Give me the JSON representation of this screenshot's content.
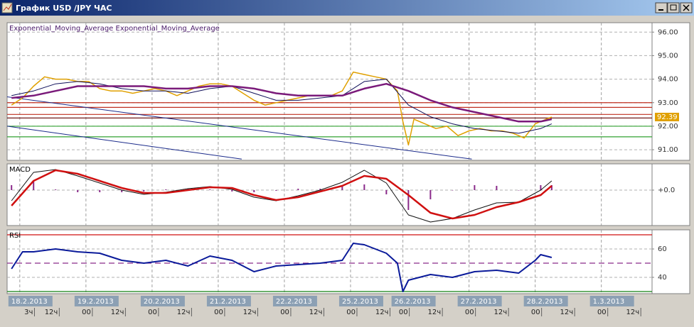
{
  "window": {
    "title": "График USD /JPY ЧАС"
  },
  "chart_data": [
    {
      "type": "line",
      "title": "Exponential_Moving_Average Exponential_Moving_Average",
      "xlim": [
        -4.6,
        229.4
      ],
      "ylim": [
        90.55,
        96.4
      ],
      "yticks": [
        {
          "value": 91,
          "label": "91.00"
        },
        {
          "value": 92,
          "label": "92.00"
        },
        {
          "value": 93,
          "label": "93.00"
        },
        {
          "value": 94,
          "label": "94.00"
        },
        {
          "value": 95,
          "label": "95.00"
        },
        {
          "value": 96,
          "label": "96.00"
        }
      ],
      "grid": true,
      "last_value": 92.39,
      "levels": [
        {
          "value": 93.0,
          "color": "#c03020"
        },
        {
          "value": 92.8,
          "color": "#c03020"
        },
        {
          "value": 92.5,
          "color": "#c03020"
        },
        {
          "value": 92.35,
          "color": "#600000"
        },
        {
          "value": 92.0,
          "color": "#30a030"
        },
        {
          "value": 91.55,
          "color": "#30a030"
        }
      ],
      "series": [
        {
          "type": "line",
          "color": "#1a2a8a",
          "width": 1,
          "x": [
            -4.6,
            164
          ],
          "values": [
            93.25,
            90.6
          ]
        },
        {
          "type": "line",
          "color": "#1a2a8a",
          "width": 1,
          "x": [
            -4.6,
            80.5
          ],
          "values": [
            92.0,
            90.6
          ]
        },
        {
          "type": "line",
          "color": "#e0a000",
          "width": 1.5,
          "x": [
            -3,
            1,
            5,
            9,
            13,
            17,
            21,
            25,
            29,
            33,
            37,
            41,
            45,
            49,
            53,
            57,
            61,
            65,
            69,
            73,
            77,
            81,
            85,
            89,
            93,
            97,
            101,
            105,
            109,
            113,
            117,
            121,
            125,
            129,
            133,
            137,
            139,
            141,
            143,
            147,
            151,
            155,
            159,
            163,
            167,
            171,
            175,
            179,
            183,
            187,
            191,
            193
          ],
          "values": [
            92.9,
            93.2,
            93.7,
            94.1,
            94.0,
            94.0,
            93.9,
            93.9,
            93.6,
            93.5,
            93.5,
            93.4,
            93.5,
            93.6,
            93.5,
            93.3,
            93.5,
            93.7,
            93.8,
            93.8,
            93.7,
            93.4,
            93.1,
            92.9,
            93.0,
            93.1,
            93.2,
            93.3,
            93.3,
            93.3,
            93.5,
            94.3,
            94.2,
            94.1,
            94.0,
            93.5,
            92.2,
            91.2,
            92.3,
            92.1,
            91.9,
            92.0,
            91.6,
            91.8,
            91.9,
            91.8,
            91.8,
            91.7,
            91.5,
            92.1,
            92.3,
            92.39
          ]
        },
        {
          "type": "line",
          "color": "#10105a",
          "width": 1,
          "x": [
            -3,
            5,
            13,
            21,
            29,
            37,
            45,
            53,
            61,
            69,
            77,
            85,
            93,
            101,
            109,
            117,
            125,
            133,
            141,
            149,
            157,
            165,
            173,
            181,
            189,
            193
          ],
          "values": [
            93.3,
            93.5,
            93.8,
            93.9,
            93.8,
            93.6,
            93.5,
            93.5,
            93.4,
            93.6,
            93.7,
            93.4,
            93.1,
            93.1,
            93.2,
            93.3,
            93.9,
            94.0,
            92.9,
            92.4,
            92.1,
            91.9,
            91.8,
            91.7,
            91.9,
            92.1
          ]
        },
        {
          "type": "line",
          "color": "#7a1a7a",
          "width": 2.5,
          "x": [
            -3,
            5,
            13,
            21,
            29,
            37,
            45,
            53,
            61,
            69,
            77,
            85,
            93,
            101,
            109,
            117,
            125,
            133,
            141,
            149,
            157,
            165,
            173,
            181,
            189,
            193
          ],
          "values": [
            93.2,
            93.3,
            93.5,
            93.7,
            93.7,
            93.7,
            93.7,
            93.6,
            93.6,
            93.7,
            93.7,
            93.6,
            93.4,
            93.3,
            93.3,
            93.3,
            93.6,
            93.8,
            93.5,
            93.1,
            92.8,
            92.6,
            92.4,
            92.2,
            92.2,
            92.3
          ]
        }
      ]
    },
    {
      "type": "line",
      "title": "MACD",
      "xlim": [
        -4.6,
        229.4
      ],
      "ylim": [
        -1,
        0.74
      ],
      "yticks": [
        {
          "value": 0,
          "label": "+0.0"
        }
      ],
      "grid": true,
      "series": [
        {
          "type": "bar",
          "color": "#8a2a8a",
          "x": [
            -3,
            5,
            13,
            21,
            29,
            37,
            45,
            53,
            61,
            69,
            77,
            85,
            93,
            101,
            109,
            117,
            125,
            133,
            141,
            149,
            157,
            165,
            173,
            181,
            189,
            193
          ],
          "values": [
            0.14,
            0.24,
            0.02,
            -0.06,
            -0.06,
            -0.06,
            -0.04,
            0.02,
            0.04,
            0.02,
            -0.04,
            -0.06,
            -0.02,
            0.04,
            0.04,
            0.1,
            0.16,
            -0.12,
            -0.56,
            -0.26,
            0,
            0.14,
            0.12,
            0,
            0.14,
            0.14
          ]
        },
        {
          "type": "line",
          "color": "#101010",
          "width": 1,
          "x": [
            -3,
            5,
            13,
            21,
            29,
            37,
            45,
            53,
            61,
            69,
            77,
            85,
            93,
            101,
            109,
            117,
            125,
            133,
            141,
            149,
            157,
            165,
            173,
            181,
            189,
            193
          ],
          "values": [
            -0.3,
            0.5,
            0.58,
            0.4,
            0.2,
            0,
            -0.12,
            -0.06,
            0.04,
            0.1,
            0.02,
            -0.2,
            -0.3,
            -0.16,
            0,
            0.22,
            0.56,
            0.2,
            -0.7,
            -0.9,
            -0.8,
            -0.56,
            -0.36,
            -0.34,
            0,
            0.26
          ]
        },
        {
          "type": "line",
          "color": "#d01010",
          "width": 2.5,
          "x": [
            -3,
            5,
            13,
            21,
            29,
            37,
            45,
            53,
            61,
            69,
            77,
            85,
            93,
            101,
            109,
            117,
            125,
            133,
            141,
            149,
            157,
            165,
            173,
            181,
            189,
            193
          ],
          "values": [
            -0.44,
            0.26,
            0.56,
            0.46,
            0.26,
            0.06,
            -0.08,
            -0.08,
            0,
            0.08,
            0.06,
            -0.14,
            -0.28,
            -0.2,
            -0.04,
            0.12,
            0.4,
            0.32,
            -0.14,
            -0.64,
            -0.8,
            -0.7,
            -0.48,
            -0.34,
            -0.14,
            0.12
          ]
        }
      ]
    },
    {
      "type": "line",
      "title": "RSI",
      "xlim": [
        -4.6,
        229.4
      ],
      "ylim": [
        28.5,
        73.5
      ],
      "yticks": [
        40,
        60
      ],
      "grid": true,
      "levels": [
        {
          "value": 70,
          "color": "#d01010"
        },
        {
          "value": 50,
          "color": "#8a2a8a",
          "dashed": true
        },
        {
          "value": 30,
          "color": "#108010"
        }
      ],
      "series": [
        {
          "type": "line",
          "color": "#0a1a9a",
          "width": 2,
          "x": [
            -3,
            1,
            5,
            13,
            21,
            29,
            37,
            45,
            53,
            61,
            69,
            77,
            85,
            93,
            101,
            109,
            117,
            121,
            125,
            133,
            137,
            139,
            141,
            149,
            157,
            165,
            173,
            181,
            187,
            189,
            193
          ],
          "values": [
            46,
            58,
            58,
            60,
            58,
            57,
            52,
            50,
            52,
            48,
            55,
            52,
            44,
            48,
            49,
            50,
            52,
            64,
            63,
            57,
            50,
            30,
            38,
            42,
            40,
            44,
            45,
            43,
            52,
            56,
            54
          ]
        }
      ],
      "xticks": [
        {
          "value": 0,
          "label": "18.2.2013"
        },
        {
          "value": 24,
          "label": "19.2.2013"
        },
        {
          "value": 48,
          "label": "20.2.2013"
        },
        {
          "value": 72,
          "label": "21.2.2013"
        },
        {
          "value": 96,
          "label": "22.2.2013"
        },
        {
          "value": 120,
          "label": "25.2.2013"
        },
        {
          "value": 139,
          "label": "26.2.2013"
        },
        {
          "value": 163,
          "label": "27.2.2013"
        },
        {
          "value": 187,
          "label": "28.2.2013"
        },
        {
          "value": 211,
          "label": "1.3.2013"
        }
      ],
      "minor_xticks": [
        {
          "value": 3,
          "label": "3ч"
        },
        {
          "value": 12,
          "label": "12ч"
        },
        {
          "value": 24,
          "label": "00"
        },
        {
          "value": 36,
          "label": "12ч"
        },
        {
          "value": 48,
          "label": "00"
        },
        {
          "value": 60,
          "label": "12ч"
        },
        {
          "value": 72,
          "label": "00"
        },
        {
          "value": 84,
          "label": "12ч"
        },
        {
          "value": 96,
          "label": "00"
        },
        {
          "value": 108,
          "label": "12ч"
        },
        {
          "value": 120,
          "label": "00"
        },
        {
          "value": 132,
          "label": "12ч"
        },
        {
          "value": 139,
          "label": "00"
        },
        {
          "value": 151,
          "label": "12ч"
        },
        {
          "value": 163,
          "label": "00"
        },
        {
          "value": 175,
          "label": "12ч"
        },
        {
          "value": 187,
          "label": "00"
        },
        {
          "value": 199,
          "label": "12ч"
        },
        {
          "value": 211,
          "label": "00"
        },
        {
          "value": 223,
          "label": "12ч"
        }
      ]
    }
  ]
}
